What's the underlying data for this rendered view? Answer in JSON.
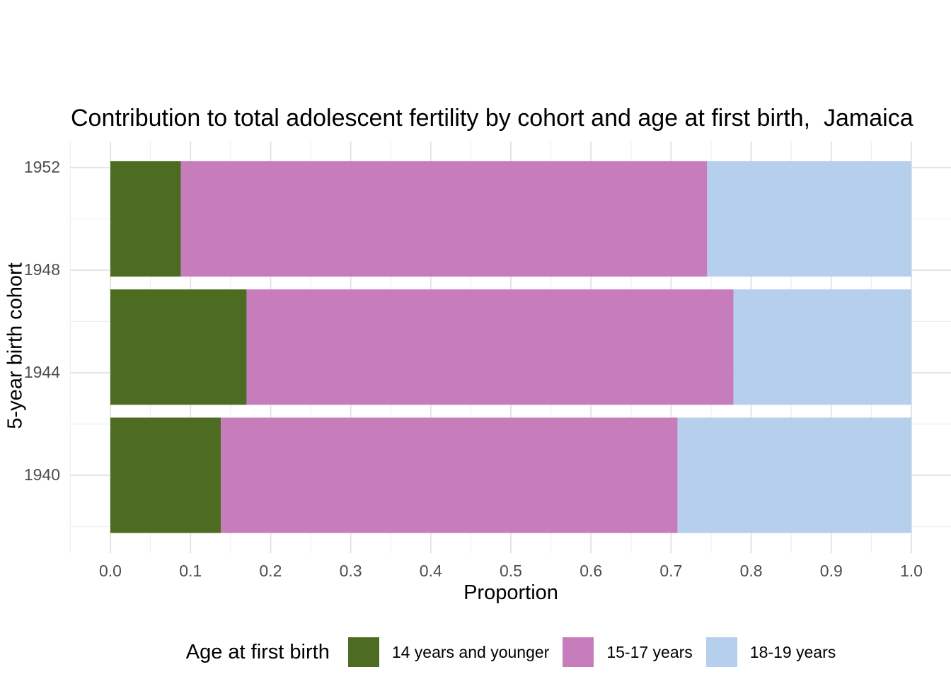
{
  "title": "Contribution to total adolescent fertility by cohort and age at first birth,  Jamaica",
  "legend": {
    "title": "Age at first birth",
    "entries": [
      {
        "label": "14 years and younger",
        "color": "#4D6B21"
      },
      {
        "label": "15-17 years",
        "color": "#C77CBC"
      },
      {
        "label": "18-19 years",
        "color": "#B5CFEC"
      }
    ]
  },
  "colors": {
    "background": "#FFFFFF",
    "grid_major": "#E4E4E4",
    "grid_minor": "#EFEFEF",
    "tick_text": "#4D4D4D",
    "title_text": "#000000"
  },
  "chart_data": {
    "type": "bar",
    "orientation": "horizontal",
    "stacked": true,
    "title": "Contribution to total adolescent fertility by cohort and age at first birth,  Jamaica",
    "xlabel": "Proportion",
    "ylabel": "5-year birth cohort",
    "xlim": [
      0,
      1
    ],
    "ylim": [
      1937,
      1953.1
    ],
    "grid": "major+minor",
    "legend_position": "bottom",
    "x_ticks": {
      "labels": [
        "0.0",
        "0.1",
        "0.2",
        "0.3",
        "0.4",
        "0.5",
        "0.6",
        "0.7",
        "0.8",
        "0.9",
        "1.0"
      ],
      "values": [
        0,
        0.1,
        0.2,
        0.3,
        0.4,
        0.5,
        0.6,
        0.7,
        0.8,
        0.9,
        1
      ],
      "minor_values": [
        -0.05,
        0.05,
        0.15,
        0.25,
        0.35,
        0.45,
        0.55,
        0.65,
        0.75,
        0.85,
        0.95
      ]
    },
    "y_ticks": {
      "labels": [
        "1952",
        "1948",
        "1944",
        "1940"
      ],
      "values": [
        1952,
        1948,
        1944,
        1940
      ],
      "minor_values": [
        1950,
        1946,
        1942,
        1938
      ]
    },
    "bars": {
      "cohort_centers": [
        1950,
        1945,
        1940
      ],
      "bar_height_years": 4.5
    },
    "series": [
      {
        "name": "14 years and younger",
        "color": "#4D6B21",
        "values": [
          0.088,
          0.17,
          0.138
        ]
      },
      {
        "name": "15-17 years",
        "color": "#C77CBC",
        "values": [
          0.657,
          0.608,
          0.57
        ]
      },
      {
        "name": "18-19 years",
        "color": "#B5CFEC",
        "values": [
          0.255,
          0.222,
          0.292
        ]
      }
    ]
  }
}
